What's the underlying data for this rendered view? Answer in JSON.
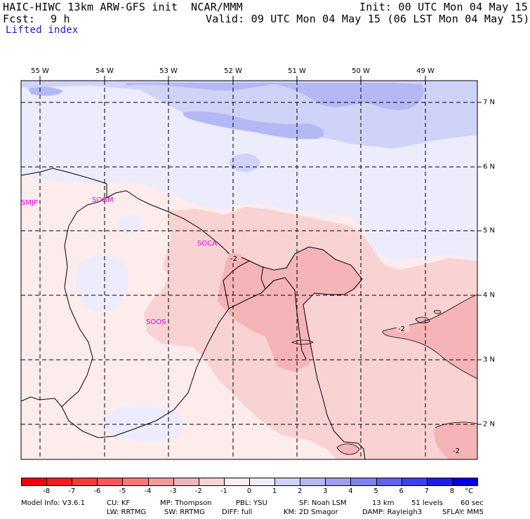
{
  "header": {
    "model": "HAIC-HIWC 13km ARW-GFS init",
    "org": "NCAR/MMM",
    "init": "Init: 00 UTC Mon 04 May 15",
    "fcst_label": "Fcst:",
    "fcst_value": "9 h",
    "valid": "Valid: 09 UTC Mon 04 May 15 (06 LST Mon 04 May 15)",
    "field": "Lifted index"
  },
  "map": {
    "longitude_labels": [
      "55 W",
      "54 W",
      "53 W",
      "52 W",
      "51 W",
      "50 W",
      "49 W"
    ],
    "latitude_labels": [
      "7 N",
      "6 N",
      "5 N",
      "4 N",
      "3 N",
      "2 N"
    ],
    "stations": [
      "SMJP",
      "SOGM",
      "SOCA",
      "SOOS"
    ],
    "contour_labels": [
      "-2",
      "-2",
      "-2"
    ],
    "colors": {
      "deep_blue": "#b4b8f5",
      "mid_blue": "#d0d3f8",
      "light_blue": "#ececfd",
      "pale_pink": "#fdecec",
      "light_pink": "#f9d2d4",
      "mid_pink": "#f5b4b8",
      "station_text": "#e600e6"
    }
  },
  "colorbar": {
    "ticks": [
      "-8",
      "-7",
      "-6",
      "-5",
      "-4",
      "-3",
      "-2",
      "-1",
      "0",
      "1",
      "2",
      "3",
      "4",
      "5",
      "6",
      "7",
      "8"
    ],
    "unit": "°C",
    "colors": [
      "#f00000",
      "#f21c1c",
      "#f23c3c",
      "#f25a5a",
      "#f47a7a",
      "#f69898",
      "#f5b4b8",
      "#f9d2d4",
      "#fdecec",
      "#ececfd",
      "#d0d3f8",
      "#b4b8f5",
      "#9a9ff2",
      "#7c82ef",
      "#5e64ec",
      "#3c42ea",
      "#1e1ee6",
      "#0000e6"
    ]
  },
  "footer": {
    "line1": {
      "model_info": "Model Info: V3.6.1",
      "cu": "CU: KF",
      "mp": "MP: Thompson",
      "pbl": "PBL: YSU",
      "sf": "SF: Noah LSM",
      "res": "13 km",
      "levels": "51 levels",
      "dt": "60 sec"
    },
    "line2": {
      "lw": "LW: RRTMG",
      "sw": "SW: RRTMG",
      "diff": "DIFF: full",
      "km": "KM: 2D Smagor",
      "damp": "DAMP: Rayleigh3",
      "sflay": "SFLAY: MM5"
    }
  }
}
